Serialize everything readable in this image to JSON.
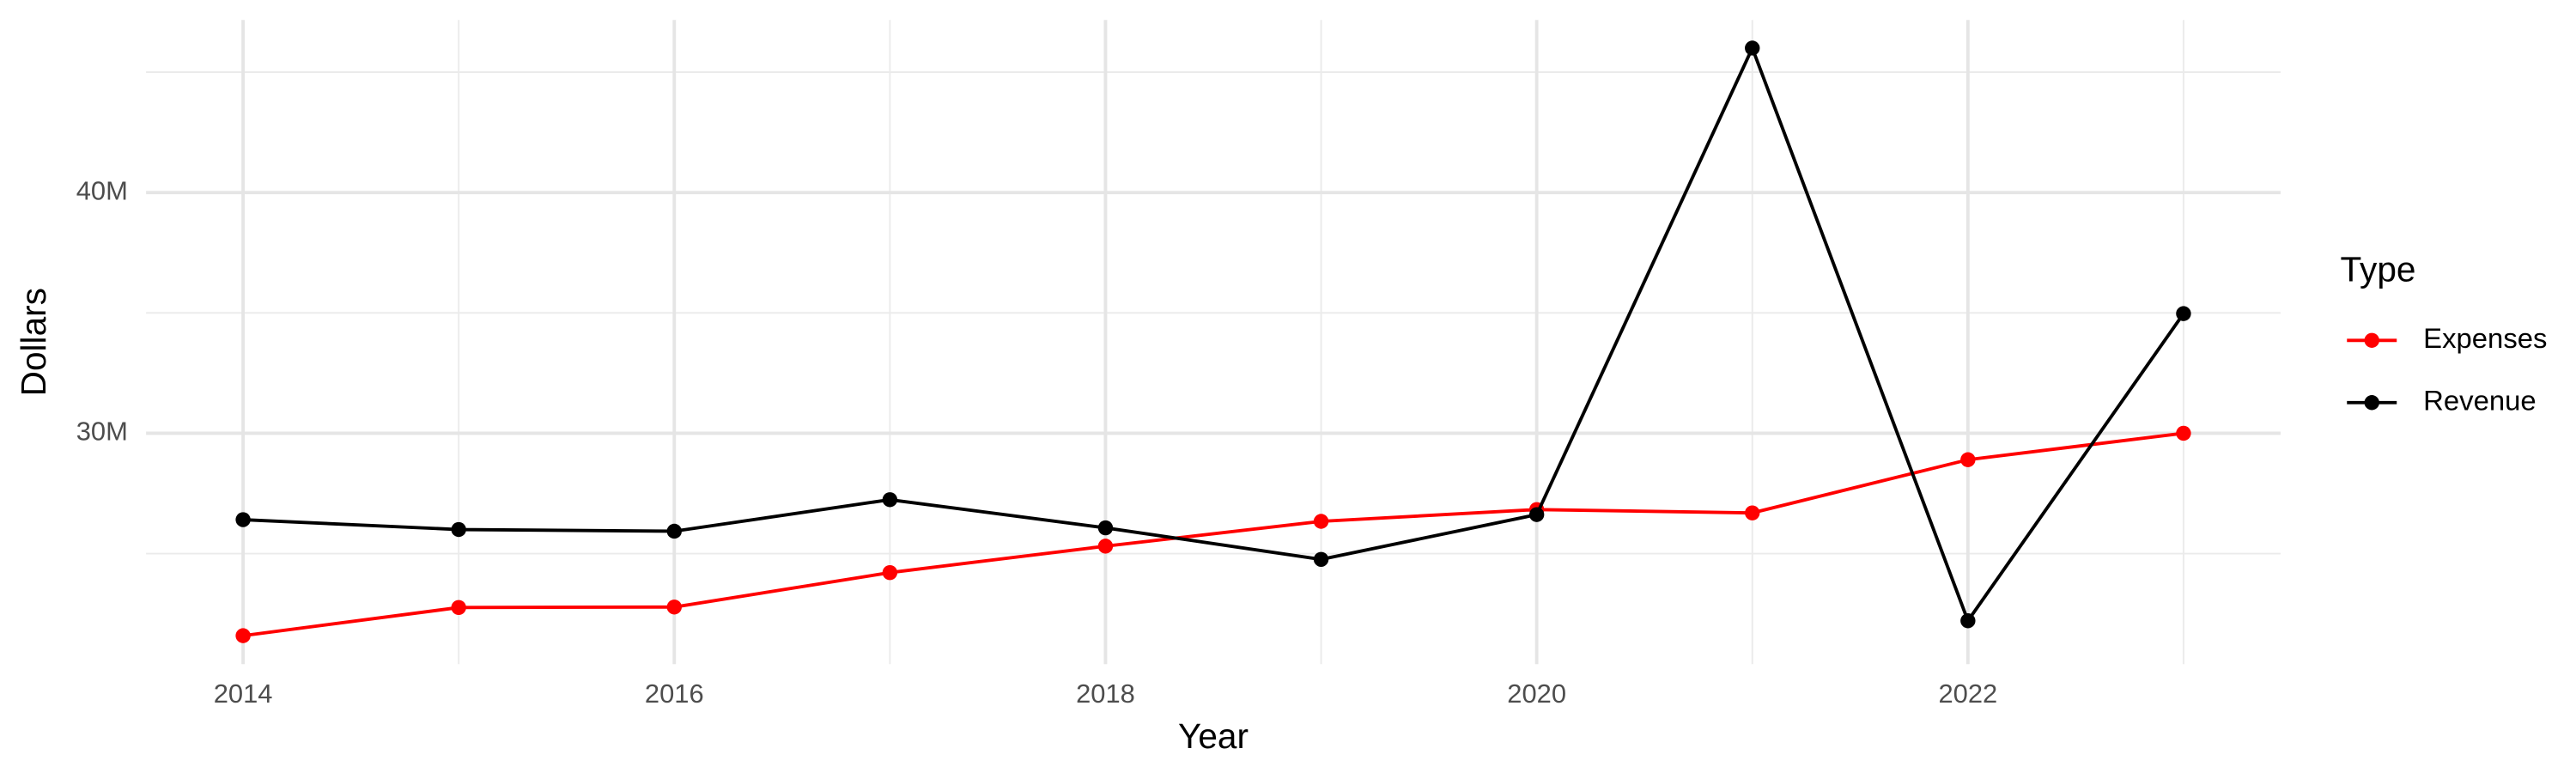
{
  "chart_data": {
    "type": "line",
    "x_label": "Year",
    "y_label": "Dollars",
    "legend_title": "Type",
    "x": [
      2014,
      2015,
      2016,
      2017,
      2018,
      2019,
      2020,
      2021,
      2022,
      2023
    ],
    "series": [
      {
        "name": "Expenses",
        "color": "#ff0000",
        "values": [
          21590000,
          22760000,
          22780000,
          24210000,
          25310000,
          26340000,
          26830000,
          26690000,
          28900000,
          30000000
        ]
      },
      {
        "name": "Revenue",
        "color": "#000000",
        "values": [
          26410000,
          26000000,
          25930000,
          27240000,
          26070000,
          24760000,
          26620000,
          46000000,
          22210000,
          34970000
        ]
      }
    ],
    "xlim": [
      2013.55,
      2023.45
    ],
    "xticks": [
      2014,
      2016,
      2018,
      2020,
      2022
    ],
    "x_minor_grid": [
      2015,
      2017,
      2019,
      2021,
      2023
    ],
    "ylim": [
      20410000,
      47170000
    ],
    "yticks": [
      {
        "value": 30000000,
        "label": "30M"
      },
      {
        "value": 40000000,
        "label": "40M"
      }
    ],
    "y_minor_grid": [
      25000000,
      35000000,
      45000000
    ],
    "grid": true,
    "legend_position": "right"
  }
}
